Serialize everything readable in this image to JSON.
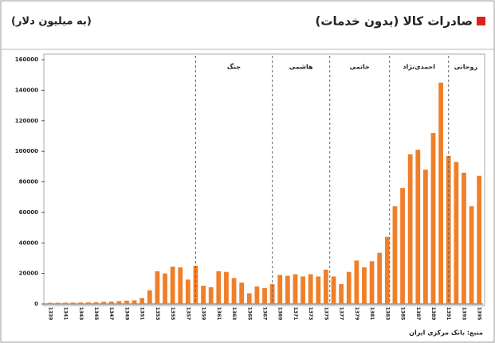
{
  "chart_data": {
    "type": "bar",
    "title": "صادرات کالا (بدون خدمات)",
    "subtitle": "(به میلیون دلار)",
    "source": "منبع: بانک مرکزی ایران",
    "annotations": [
      "جنگ",
      "هاشمی",
      "خاتمی",
      "احمدی‌نژاد",
      "روحانی"
    ],
    "categories": [
      "1339",
      null,
      "1341",
      null,
      "1343",
      null,
      "1345",
      null,
      "1347",
      null,
      "1349",
      null,
      "1351",
      null,
      "1353",
      null,
      "1355",
      null,
      "1357",
      null,
      "1359",
      null,
      "1361",
      null,
      "1363",
      null,
      "1365",
      null,
      "1367",
      null,
      "1369",
      null,
      "1371",
      null,
      "1373",
      null,
      "1375",
      null,
      "1377",
      null,
      "1379",
      null,
      "1381",
      null,
      "1383",
      null,
      "1385",
      null,
      "1387",
      null,
      "1389",
      null,
      "1391",
      null,
      "1393",
      null,
      "1395"
    ],
    "values": [
      800,
      800,
      900,
      900,
      1000,
      1100,
      1200,
      1500,
      1600,
      1900,
      2200,
      2400,
      3900,
      9000,
      21500,
      20000,
      24500,
      24000,
      16000,
      25000,
      12000,
      11000,
      21500,
      21000,
      17000,
      14000,
      7000,
      11500,
      10500,
      13000,
      19000,
      18500,
      19500,
      18000,
      19500,
      18000,
      22500,
      18000,
      13000,
      21000,
      28500,
      24000,
      28000,
      33500,
      44000,
      64000,
      76000,
      98000,
      101000,
      88000,
      112000,
      145000,
      97000,
      93000,
      86000,
      64000,
      84000
    ],
    "color": "#f07f2a",
    "ylim": [
      0,
      160000
    ],
    "yticks": [
      0,
      20000,
      40000,
      60000,
      80000,
      100000,
      120000,
      140000,
      160000
    ],
    "grid": false
  }
}
